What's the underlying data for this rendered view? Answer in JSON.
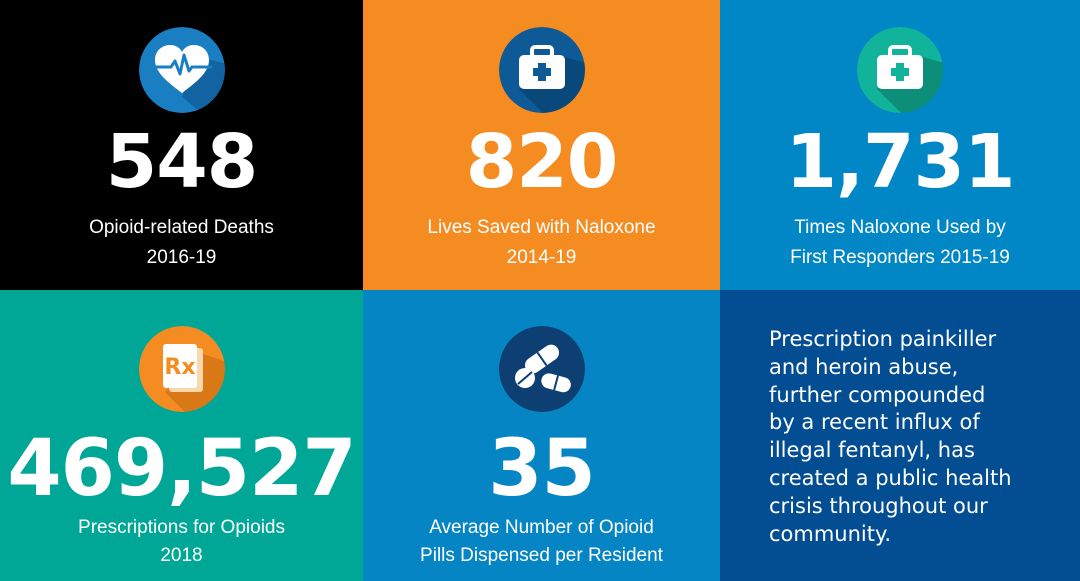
{
  "tiles": [
    {
      "icon": "heart-pulse-icon",
      "number": "548",
      "caption_line1": "Opioid-related Deaths",
      "caption_line2": "2016-19",
      "bg": "#000000"
    },
    {
      "icon": "first-aid-kit-icon",
      "number": "820",
      "caption_line1": "Lives Saved with Naloxone",
      "caption_line2": "2014-19",
      "bg": "#f48c22"
    },
    {
      "icon": "first-aid-kit-icon",
      "number": "1,731",
      "caption_line1": "Times Naloxone Used by",
      "caption_line2": "First Responders 2015-19",
      "bg": "#0186c6"
    },
    {
      "icon": "prescription-rx-icon",
      "number": "469,527",
      "caption_line1": "Prescriptions for Opioids",
      "caption_line2": "2018",
      "bg": "#00a796"
    },
    {
      "icon": "pills-icon",
      "number": "35",
      "caption_line1": "Average Number of Opioid",
      "caption_line2": "Pills Dispensed per Resident",
      "bg": "#0685c5"
    }
  ],
  "statement": {
    "lines": [
      "Prescription painkiller",
      "and heroin abuse,",
      "further compounded",
      "by a recent influx of",
      "illegal fentanyl, has",
      "created a public health",
      "crisis throughout our",
      "community."
    ],
    "bg": "#034d93"
  },
  "colors": {
    "icon_circle_blue": "#1a7fc2",
    "icon_circle_dark_blue": "#0d5a97",
    "icon_circle_teal": "#11b49a",
    "icon_circle_orange": "#f48c22",
    "icon_shadow": "#0b4f86"
  }
}
